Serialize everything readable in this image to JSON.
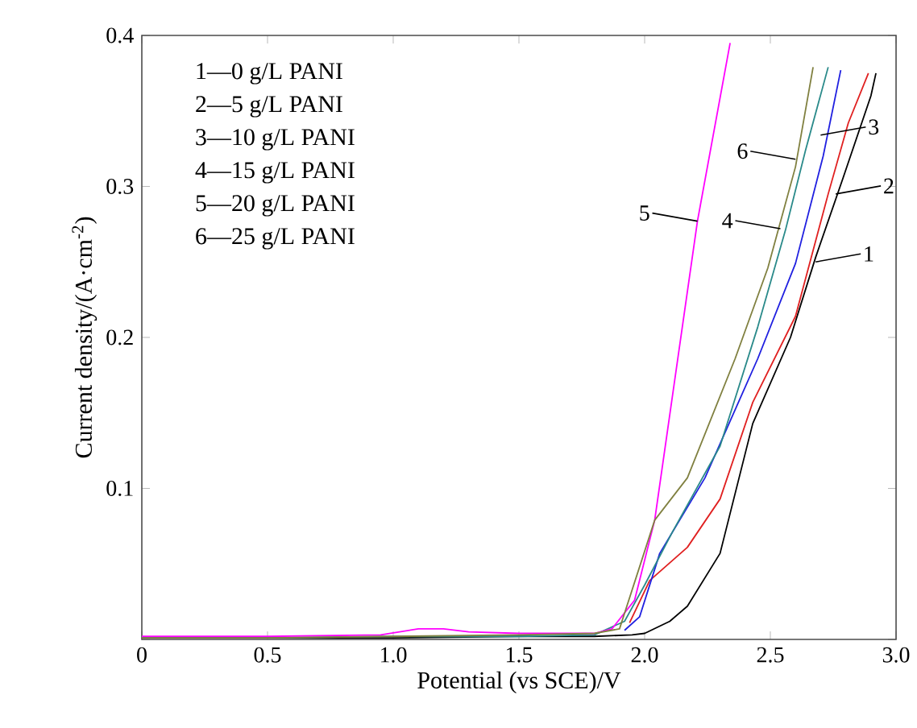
{
  "chart_data": {
    "type": "line",
    "xlabel": "Potential (vs SCE)/V",
    "ylabel": "Current density/(A·cm$^{-2}$)",
    "xlim": [
      0,
      3
    ],
    "ylim": [
      0,
      0.4
    ],
    "xticks": [
      0,
      0.5,
      {
        "value": 1,
        "label": "1.0"
      },
      1.5,
      {
        "value": 2,
        "label": "2.0"
      },
      2.5,
      {
        "value": 3,
        "label": "3.0"
      }
    ],
    "yticks": [
      {
        "value": 0,
        "label": null
      },
      0.1,
      0.2,
      0.3,
      0.4
    ],
    "grid": false,
    "marker": "none",
    "line_style": "solid",
    "series": [
      {
        "color": "#000000",
        "x": [
          0,
          0.5,
          1.0,
          1.5,
          1.8,
          1.95,
          2.0,
          2.1,
          2.17,
          2.3,
          2.43,
          2.58,
          2.68,
          2.79,
          2.9,
          2.92
        ],
        "values": [
          0.001,
          0.001,
          0.001,
          0.002,
          0.002,
          0.003,
          0.004,
          0.012,
          0.022,
          0.057,
          0.143,
          0.2,
          0.253,
          0.306,
          0.36,
          0.375
        ]
      },
      {
        "color": "#e02020",
        "x": [
          1.94,
          2.02,
          2.17,
          2.3,
          2.43,
          2.6,
          2.73,
          2.81,
          2.89
        ],
        "values": [
          0.011,
          0.039,
          0.061,
          0.093,
          0.157,
          0.214,
          0.295,
          0.342,
          0.375
        ]
      },
      {
        "color": "#2020e0",
        "x": [
          1.92,
          1.98,
          2.06,
          2.24,
          2.45,
          2.6,
          2.71,
          2.78
        ],
        "values": [
          0.006,
          0.015,
          0.057,
          0.107,
          0.186,
          0.249,
          0.32,
          0.377
        ]
      },
      {
        "color": "#2a8a8a",
        "x": [
          0,
          0.5,
          1.0,
          1.5,
          1.8,
          1.92,
          2.0,
          2.11,
          2.3,
          2.45,
          2.56,
          2.64,
          2.73
        ],
        "values": [
          0.001,
          0.001,
          0.002,
          0.002,
          0.003,
          0.012,
          0.036,
          0.071,
          0.128,
          0.207,
          0.271,
          0.324,
          0.379
        ]
      },
      {
        "color": "#ff00ff",
        "x": [
          0,
          0.5,
          0.95,
          1.1,
          1.2,
          1.3,
          1.5,
          1.8,
          1.87,
          1.96,
          2.04,
          2.21,
          2.34
        ],
        "values": [
          0.002,
          0.002,
          0.003,
          0.007,
          0.007,
          0.005,
          0.004,
          0.004,
          0.007,
          0.026,
          0.079,
          0.277,
          0.395
        ]
      },
      {
        "color": "#808040",
        "x": [
          0,
          0.5,
          1.0,
          1.5,
          1.8,
          1.9,
          2.04,
          2.17,
          2.36,
          2.49,
          2.6,
          2.67
        ],
        "values": [
          0.001,
          0.001,
          0.002,
          0.003,
          0.004,
          0.007,
          0.079,
          0.107,
          0.186,
          0.246,
          0.313,
          0.379
        ]
      }
    ],
    "annotations": [
      "1—0 g/L PANI",
      "2—5 g/L PANI",
      "3—10 g/L PANI",
      "4—15 g/L PANI",
      "5—20 g/L PANI",
      "6—25 g/L PANI",
      {
        "text": "1",
        "x": 2.68,
        "y": 0.25
      },
      {
        "text": "2",
        "x": 2.76,
        "y": 0.295
      },
      {
        "text": "3",
        "x": 2.7,
        "y": 0.334
      },
      {
        "text": "4",
        "x": 2.54,
        "y": 0.272
      },
      {
        "text": "5",
        "x": 2.21,
        "y": 0.277
      },
      {
        "text": "6",
        "x": 2.6,
        "y": 0.318
      }
    ]
  }
}
